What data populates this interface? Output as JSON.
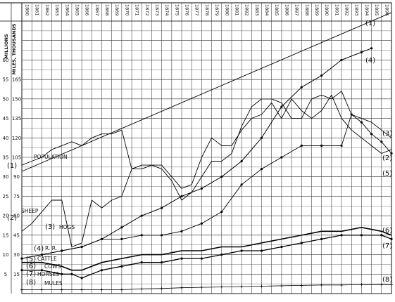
{
  "chart_data": {
    "type": "line",
    "title": "",
    "grid": true,
    "x": [
      1860,
      1861,
      1862,
      1863,
      1864,
      1865,
      1866,
      1867,
      1868,
      1869,
      1870,
      1871,
      1872,
      1873,
      1874,
      1875,
      1876,
      1877,
      1878,
      1879,
      1880,
      1881,
      1882,
      1883,
      1884,
      1885,
      1886,
      1887,
      1888,
      1889,
      1890,
      1891,
      1892,
      1893,
      1894,
      1895,
      1896,
      1897
    ],
    "x_tick_labels": [
      "1860",
      "1861",
      "1862",
      "1863",
      "1864",
      "1865",
      "1866",
      "1867",
      "1868",
      "1869",
      "1870",
      "1871",
      "1872",
      "1873",
      "1874",
      "1875",
      "1876",
      "1877",
      "1878",
      "1879",
      "1880",
      "1881",
      "1882",
      "1883",
      "1884",
      "1885",
      "1886",
      "1887",
      "1888",
      "1889",
      "1890",
      "1891",
      "1892",
      "1893",
      "1894",
      "1895",
      "1896",
      "1897"
    ],
    "y_axis_titles": {
      "left": "MILLIONS",
      "right": "MILES, THOUSANDS"
    },
    "y_ticks_left": [
      5,
      10,
      15,
      20,
      25,
      30,
      35,
      40,
      45,
      50,
      55,
      60
    ],
    "y_ticks_right": [
      15,
      30,
      45,
      60,
      75,
      90,
      105,
      120,
      135,
      150,
      165
    ],
    "ylim": [
      0,
      70
    ],
    "series": [
      {
        "name": "POPULATION",
        "num": "(1)",
        "marker": "none",
        "x": [
          1860,
          1897
        ],
        "y": [
          31.4,
          72.2
        ]
      },
      {
        "name": "SHEEP",
        "num": "(2)",
        "marker": "none",
        "x": [
          1860,
          1861,
          1862,
          1863,
          1864,
          1865,
          1866,
          1867,
          1868,
          1869,
          1870,
          1871,
          1872,
          1873,
          1874,
          1875,
          1876,
          1877,
          1878,
          1879,
          1880,
          1881,
          1882,
          1883,
          1884,
          1885,
          1886,
          1887,
          1888,
          1889,
          1890,
          1891,
          1892,
          1893,
          1894,
          1895,
          1896,
          1897
        ],
        "y": [
          16,
          18,
          21,
          24,
          24,
          12,
          13,
          24,
          22,
          24,
          25,
          32,
          33,
          33,
          33,
          30,
          27,
          28,
          35,
          40,
          38,
          38,
          42,
          45,
          46,
          49,
          45,
          50,
          47,
          45,
          47,
          51,
          45,
          42,
          40,
          38,
          36,
          37
        ]
      },
      {
        "name": "HOGS",
        "num": "(3)",
        "marker": "none",
        "x": [
          1860,
          1861,
          1862,
          1863,
          1864,
          1865,
          1866,
          1867,
          1868,
          1869,
          1870,
          1871,
          1872,
          1873,
          1874,
          1875,
          1876,
          1877,
          1878,
          1879,
          1880,
          1881,
          1882,
          1883,
          1884,
          1885,
          1886,
          1887,
          1888,
          1889,
          1890,
          1891,
          1892,
          1893,
          1894,
          1895,
          1896,
          1897
        ],
        "y": [
          33,
          34,
          35,
          37,
          38,
          39,
          38,
          40,
          41,
          41,
          42,
          32,
          32,
          33,
          32,
          29,
          24,
          26,
          30,
          34,
          34,
          36,
          43,
          48,
          50,
          50,
          49,
          45,
          45,
          50,
          51,
          50,
          52,
          46,
          45,
          44,
          42,
          40
        ]
      },
      {
        "name": "R. R.",
        "num": "(4)",
        "marker": "dot",
        "x": [
          1860,
          1862,
          1864,
          1866,
          1868,
          1870,
          1872,
          1874,
          1876,
          1878,
          1880,
          1882,
          1884,
          1886,
          1888,
          1890,
          1892,
          1894,
          1895
        ],
        "y": [
          9,
          10,
          11,
          12,
          14,
          17,
          20,
          22,
          25,
          27,
          30,
          34,
          40,
          48,
          53,
          56,
          60,
          62,
          63
        ]
      },
      {
        "name": "CATTLE",
        "num": "(5)",
        "marker": "dot",
        "x": [
          1860,
          1862,
          1864,
          1866,
          1868,
          1870,
          1872,
          1874,
          1876,
          1878,
          1880,
          1882,
          1884,
          1886,
          1888,
          1890,
          1892,
          1893,
          1894,
          1895,
          1896,
          1897
        ],
        "y": [
          9,
          10,
          11,
          12,
          14,
          14,
          15,
          15,
          16,
          18,
          21,
          28,
          32,
          35,
          38,
          38,
          38,
          46,
          44,
          41,
          39,
          36
        ]
      },
      {
        "name": "COWS",
        "num": "(6)",
        "marker": "none",
        "x": [
          1860,
          1862,
          1864,
          1865,
          1866,
          1868,
          1870,
          1872,
          1874,
          1876,
          1878,
          1880,
          1882,
          1884,
          1886,
          1888,
          1890,
          1892,
          1894,
          1896,
          1897
        ],
        "y": [
          8,
          8,
          7,
          6,
          6,
          8,
          9,
          10,
          10,
          11,
          11,
          12,
          12,
          13,
          14,
          15,
          16,
          16,
          17,
          16,
          15
        ]
      },
      {
        "name": "HORSES",
        "num": "(7)",
        "marker": "dot",
        "x": [
          1860,
          1862,
          1864,
          1865,
          1866,
          1868,
          1870,
          1872,
          1874,
          1876,
          1878,
          1880,
          1882,
          1884,
          1886,
          1888,
          1890,
          1892,
          1894,
          1896,
          1897
        ],
        "y": [
          6,
          6,
          5,
          5,
          4,
          6,
          7,
          8,
          8,
          9,
          9,
          10,
          11,
          11,
          12,
          13,
          14,
          15,
          15,
          15,
          14
        ]
      },
      {
        "name": "MULES",
        "num": "(8)",
        "marker": "plus",
        "x": [
          1860,
          1862,
          1864,
          1866,
          1868,
          1870,
          1872,
          1874,
          1876,
          1878,
          1880,
          1882,
          1884,
          1886,
          1888,
          1890,
          1892,
          1894,
          1896,
          1897
        ],
        "y": [
          1,
          1,
          1,
          1,
          1,
          1,
          1.2,
          1.3,
          1.5,
          1.6,
          1.7,
          1.8,
          1.9,
          2,
          2.1,
          2.2,
          2.2,
          2.3,
          2.3,
          2.3
        ]
      }
    ]
  }
}
